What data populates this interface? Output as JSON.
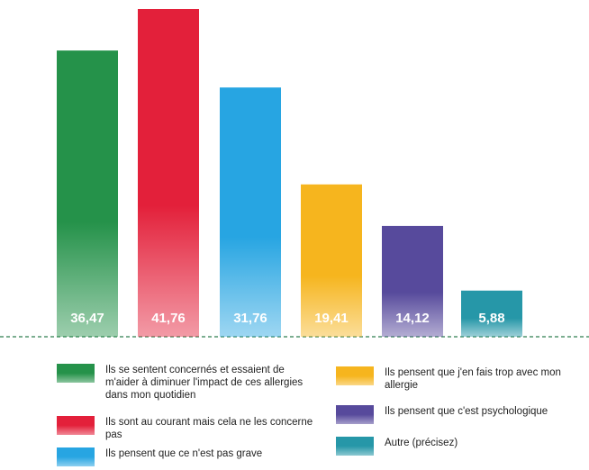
{
  "chart_data": {
    "type": "bar",
    "categories": [
      "Ils se sentent concernés et essaient de m'aider à diminuer l'impact de ces allergies dans mon quotidien",
      "Ils sont au courant mais cela ne les concerne pas",
      "Ils pensent que ce n'est pas grave",
      "Ils pensent que j'en fais trop avec mon allergie",
      "Ils pensent que c'est psychologique",
      "Autre (précisez)"
    ],
    "values": [
      36.47,
      41.76,
      31.76,
      19.41,
      14.12,
      5.88
    ],
    "value_labels": [
      "36,47",
      "41,76",
      "31,76",
      "19,41",
      "14,12",
      "5,88"
    ],
    "colors": [
      "#25924a",
      "#e3203a",
      "#27a5e2",
      "#f6b51e",
      "#574a9c",
      "#2697a8"
    ]
  }
}
